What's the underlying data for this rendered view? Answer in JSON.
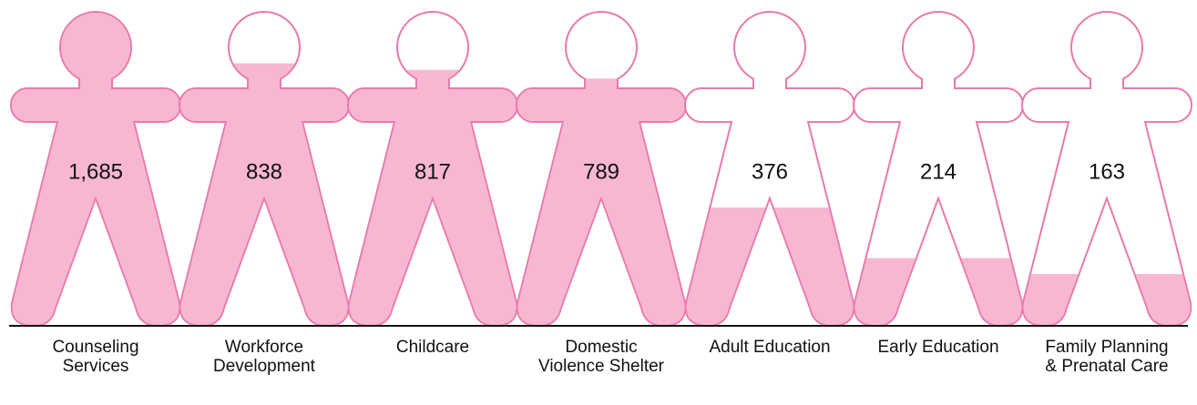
{
  "chart_data": {
    "type": "pictograph",
    "categories": [
      "Counseling Services",
      "Workforce Development",
      "Childcare",
      "Domestic Violence Shelter",
      "Adult Education",
      "Early Education",
      "Family Planning & Prenatal Care"
    ],
    "values": [
      1685,
      838,
      817,
      789,
      376,
      214,
      163
    ],
    "value_labels": [
      "1,685",
      "838",
      "817",
      "789",
      "376",
      "214",
      "163"
    ],
    "ylim": [
      0,
      1000
    ],
    "color": "#f7b6d2",
    "outline_color": "#e97aaa"
  }
}
